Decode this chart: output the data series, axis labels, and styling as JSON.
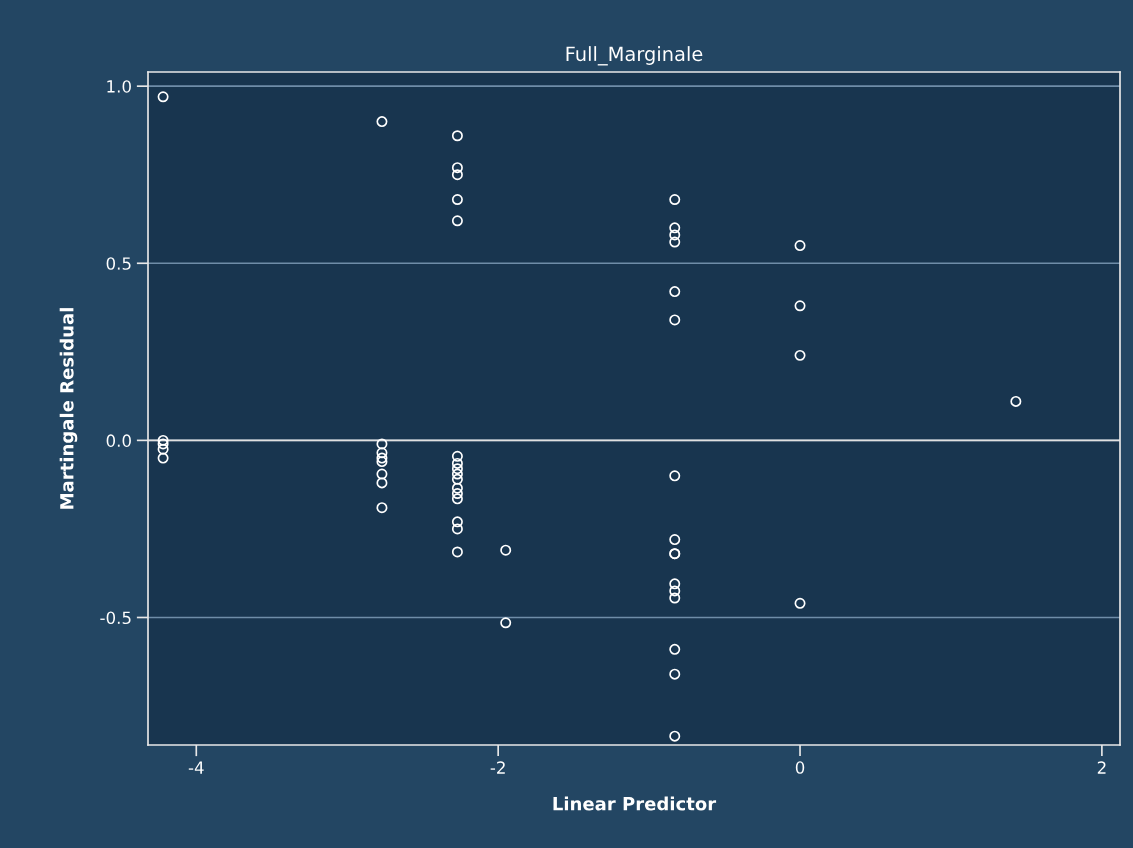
{
  "chart_data": {
    "type": "scatter",
    "title": "Full_Marginale",
    "xlabel": "Linear Predictor",
    "ylabel": "Martingale Residual",
    "series": [
      {
        "color": "#ffffff",
        "x": [
          -4.22,
          -4.22,
          -4.22,
          -4.22,
          -4.22,
          -2.77,
          -2.77,
          -2.77,
          -2.77,
          -2.77,
          -2.77,
          -2.77,
          -2.77,
          -2.27,
          -2.27,
          -2.27,
          -2.27,
          -2.27,
          -2.27,
          -2.27,
          -2.27,
          -2.27,
          -2.27,
          -2.27,
          -2.27,
          -2.27,
          -2.27,
          -2.27,
          -2.27,
          -1.95,
          -1.95,
          -0.83,
          -0.83,
          -0.83,
          -0.83,
          -0.83,
          -0.83,
          -0.83,
          -0.83,
          -0.83,
          -0.83,
          -0.83,
          -0.83,
          -0.83,
          -0.83,
          -0.83,
          -0.83,
          0,
          0,
          0,
          0,
          1.43
        ],
        "values": [
          0.97,
          0.0,
          -0.01,
          -0.025,
          -0.05,
          0.9,
          -0.01,
          -0.035,
          -0.05,
          -0.06,
          -0.095,
          -0.12,
          -0.19,
          0.86,
          0.77,
          0.75,
          0.68,
          0.62,
          -0.045,
          -0.065,
          -0.08,
          -0.095,
          -0.11,
          -0.135,
          -0.15,
          -0.165,
          -0.23,
          -0.25,
          -0.315,
          -0.31,
          -0.515,
          0.68,
          0.6,
          0.58,
          0.56,
          0.42,
          0.34,
          -0.1,
          -0.28,
          -0.32,
          -0.32,
          -0.405,
          -0.425,
          -0.445,
          -0.59,
          -0.66,
          -0.835,
          0.55,
          0.38,
          0.24,
          -0.46,
          0.11
        ]
      }
    ],
    "marker": "circle",
    "xlim": [
      -4.32,
      2.12
    ],
    "ylim": [
      -0.86,
      1.04
    ],
    "xticks": [
      -4,
      -2,
      0,
      2
    ],
    "yticks": [
      {
        "value": 1,
        "label": "1.0"
      },
      {
        "value": 0.5,
        "label": "0.5"
      },
      {
        "value": 0,
        "label": "0.0"
      },
      {
        "value": -0.5,
        "label": "-0.5"
      }
    ],
    "grid": "y",
    "ref_lines": [
      {
        "axis": "y",
        "value": 0,
        "color": "#e0e0e0"
      }
    ]
  }
}
